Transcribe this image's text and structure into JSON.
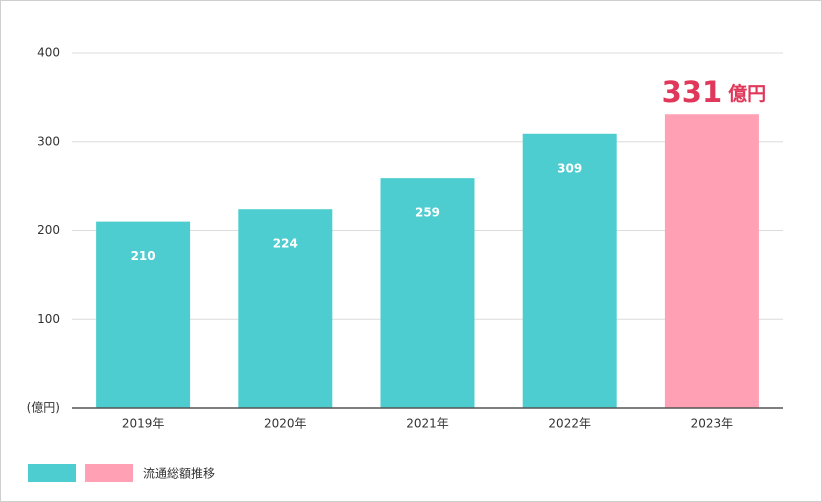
{
  "chart_data": {
    "type": "bar",
    "categories": [
      "2019年",
      "2020年",
      "2021年",
      "2022年",
      "2023年"
    ],
    "series": [
      {
        "name": "流通総額推移",
        "colors": [
          "#4ecdd0",
          "#4ecdd0",
          "#4ecdd0",
          "#4ecdd0",
          "#ffa0b4"
        ],
        "values": [
          210,
          224,
          259,
          309,
          331
        ]
      }
    ],
    "unit_label": "億円",
    "ylim": [
      0,
      400
    ],
    "yticks": [
      {
        "value": 0,
        "label": "(億円)"
      },
      100,
      200,
      300,
      400
    ],
    "grid": true
  }
}
